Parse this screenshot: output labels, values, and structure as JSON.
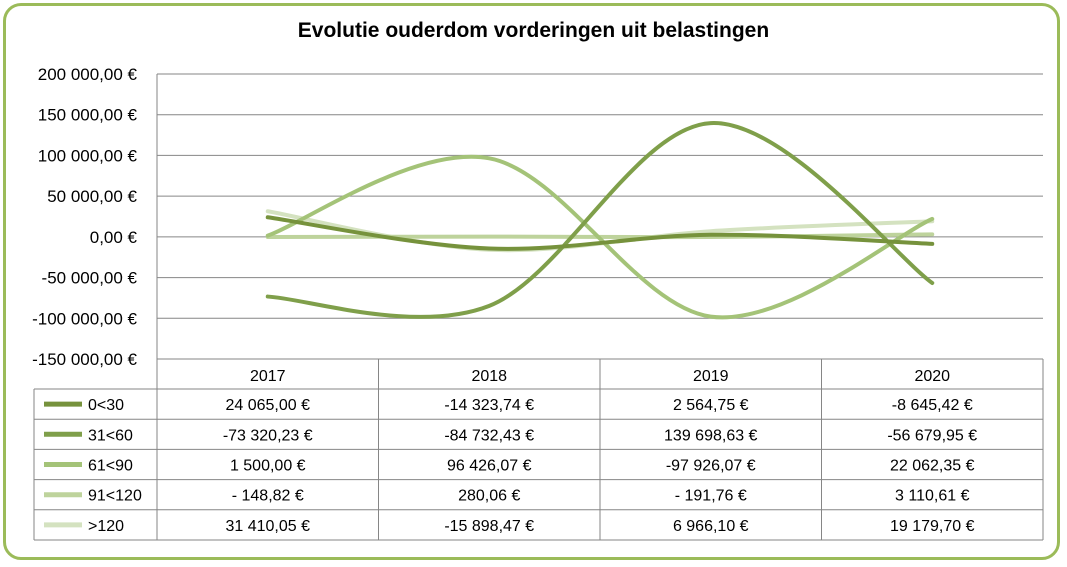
{
  "chart_data": {
    "type": "line",
    "title": "Evolutie ouderdom vorderingen uit belastingen",
    "categories": [
      "2017",
      "2018",
      "2019",
      "2020"
    ],
    "ylim": [
      -150000,
      200000
    ],
    "yticks": [
      200000,
      150000,
      100000,
      50000,
      0,
      -50000,
      -100000,
      -150000
    ],
    "ytick_labels": [
      "200 000,00 €",
      "150 000,00 €",
      "100 000,00 €",
      "50 000,00 €",
      "0,00 €",
      "-50 000,00 €",
      "-100 000,00 €",
      "-150 000,00 €"
    ],
    "grid": true,
    "legend": "data-table",
    "series": [
      {
        "name": "0<30",
        "color": "#76923c",
        "values": [
          24065.0,
          -14323.74,
          2564.75,
          -8645.42
        ],
        "labels": [
          "24 065,00 €",
          "-14 323,74 €",
          "2 564,75 €",
          "-8 645,42 €"
        ]
      },
      {
        "name": "31<60",
        "color": "#7f9f4a",
        "values": [
          -73320.23,
          -84732.43,
          139698.63,
          -56679.95
        ],
        "labels": [
          "-73 320,23 €",
          "-84 732,43 €",
          "139 698,63 €",
          "-56 679,95 €"
        ]
      },
      {
        "name": "61<90",
        "color": "#a4c378",
        "values": [
          1500.0,
          96426.07,
          -97926.07,
          22062.35
        ],
        "labels": [
          "1 500,00 €",
          "96 426,07 €",
          "-97 926,07 €",
          "22 062,35 €"
        ]
      },
      {
        "name": "91<120",
        "color": "#bed39c",
        "values": [
          -148.82,
          280.06,
          -191.76,
          3110.61
        ],
        "labels": [
          "- 148,82 €",
          "280,06 €",
          "- 191,76 €",
          "3 110,61 €"
        ]
      },
      {
        "name": ">120",
        "color": "#d4e2c0",
        "values": [
          31410.05,
          -15898.47,
          6966.1,
          19179.7
        ],
        "labels": [
          "31 410,05 €",
          "-15 898,47 €",
          "6 966,10 €",
          "19 179,70 €"
        ]
      }
    ]
  }
}
